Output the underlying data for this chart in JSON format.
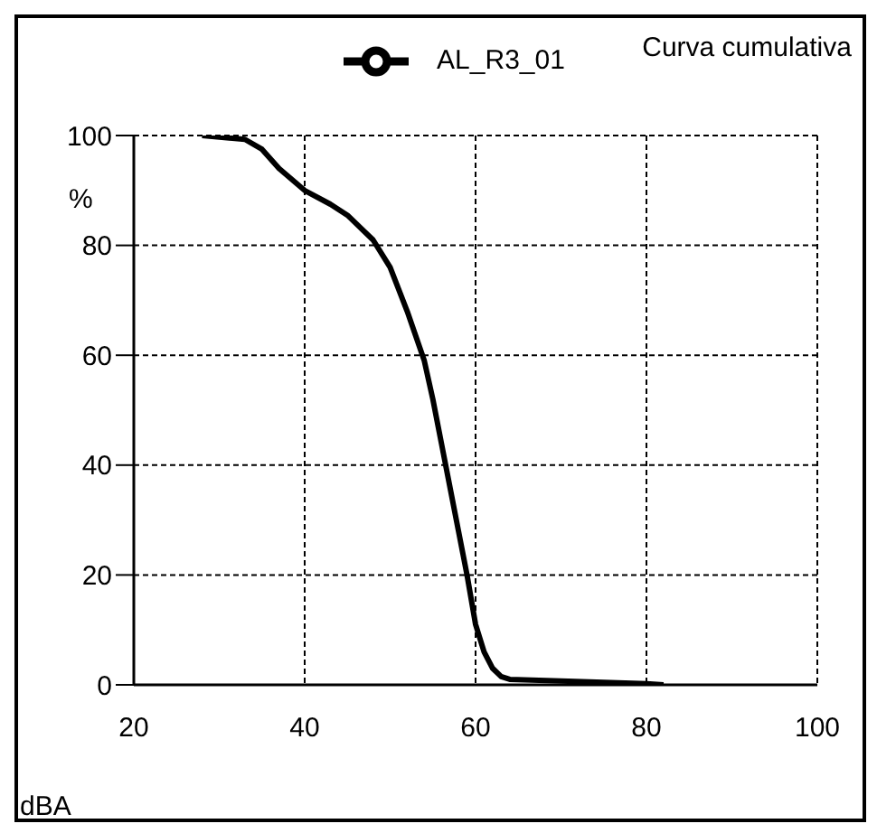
{
  "chart_data": {
    "type": "line",
    "title": "Curva cumulativa",
    "xlabel": "dBA",
    "ylabel": "%",
    "series": [
      {
        "name": "AL_R3_01",
        "color": "#000000",
        "x": [
          28,
          33,
          35,
          37,
          40,
          43,
          45,
          48,
          50,
          52,
          54,
          55,
          56,
          57,
          58,
          59,
          60,
          61,
          62,
          63,
          64,
          70,
          80,
          82
        ],
        "values": [
          100,
          99.3,
          97.5,
          94,
          90,
          87.5,
          85.5,
          81,
          76,
          68,
          59,
          52,
          44,
          36,
          28,
          20,
          11,
          6,
          3,
          1.5,
          1,
          0.7,
          0.2,
          0
        ]
      }
    ],
    "xlim": [
      20,
      100
    ],
    "xticks": [
      20,
      40,
      60,
      80,
      100
    ],
    "ylim": [
      0,
      100
    ],
    "yticks": [
      0,
      20,
      40,
      60,
      80,
      100
    ],
    "grid": true,
    "legend": "top left",
    "marker": "none",
    "line_style": "solid"
  }
}
